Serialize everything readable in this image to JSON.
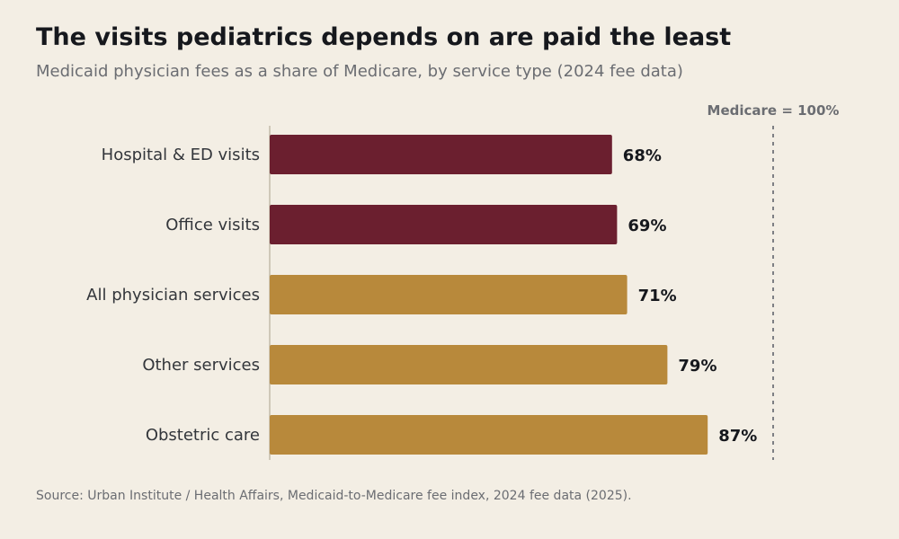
{
  "header": {
    "title": "The visits pediatrics depends on are paid the least",
    "subtitle": "Medicaid physician fees as a share of Medicare, by service type (2024 fee data)"
  },
  "footer": {
    "source": "Source: Urban Institute / Health Affairs, Medicaid-to-Medicare fee index, 2024 fee data (2025)."
  },
  "colors": {
    "highlight": "#6b1f2f",
    "default": "#b8893b",
    "background": "#f3eee4"
  },
  "chart_data": {
    "type": "bar",
    "orientation": "horizontal",
    "categories": [
      "Hospital & ED visits",
      "Office visits",
      "All physician services",
      "Other services",
      "Obstetric care"
    ],
    "values": [
      68,
      69,
      71,
      79,
      87
    ],
    "value_labels": [
      "68%",
      "69%",
      "71%",
      "79%",
      "87%"
    ],
    "highlighted": [
      true,
      true,
      false,
      false,
      false
    ],
    "xlim": [
      0,
      100
    ],
    "reference_line": {
      "value": 100,
      "label": "Medicare = 100%"
    },
    "grid": false
  }
}
